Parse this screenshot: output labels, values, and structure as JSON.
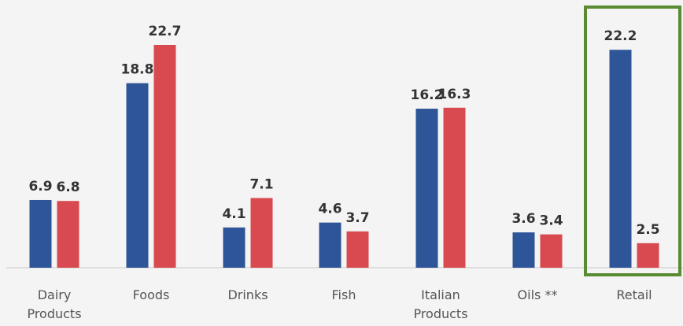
{
  "chart_data": {
    "type": "bar",
    "categories": [
      "Dairy\nProducts",
      "Foods",
      "Drinks",
      "Fish",
      "Italian\nProducts",
      "Oils **",
      "Retail"
    ],
    "series": [
      {
        "values": [
          6.9,
          18.8,
          4.1,
          4.6,
          16.2,
          3.6,
          22.2
        ],
        "color": "#2e5597"
      },
      {
        "values": [
          6.8,
          22.7,
          7.1,
          3.7,
          16.3,
          3.4,
          2.5
        ],
        "color": "#d84a4f"
      }
    ],
    "highlight": {
      "category": "Retail",
      "color": "#5a8a32"
    },
    "ylim": [
      0,
      25
    ],
    "grid": false,
    "title": "",
    "xlabel": "",
    "ylabel": ""
  }
}
